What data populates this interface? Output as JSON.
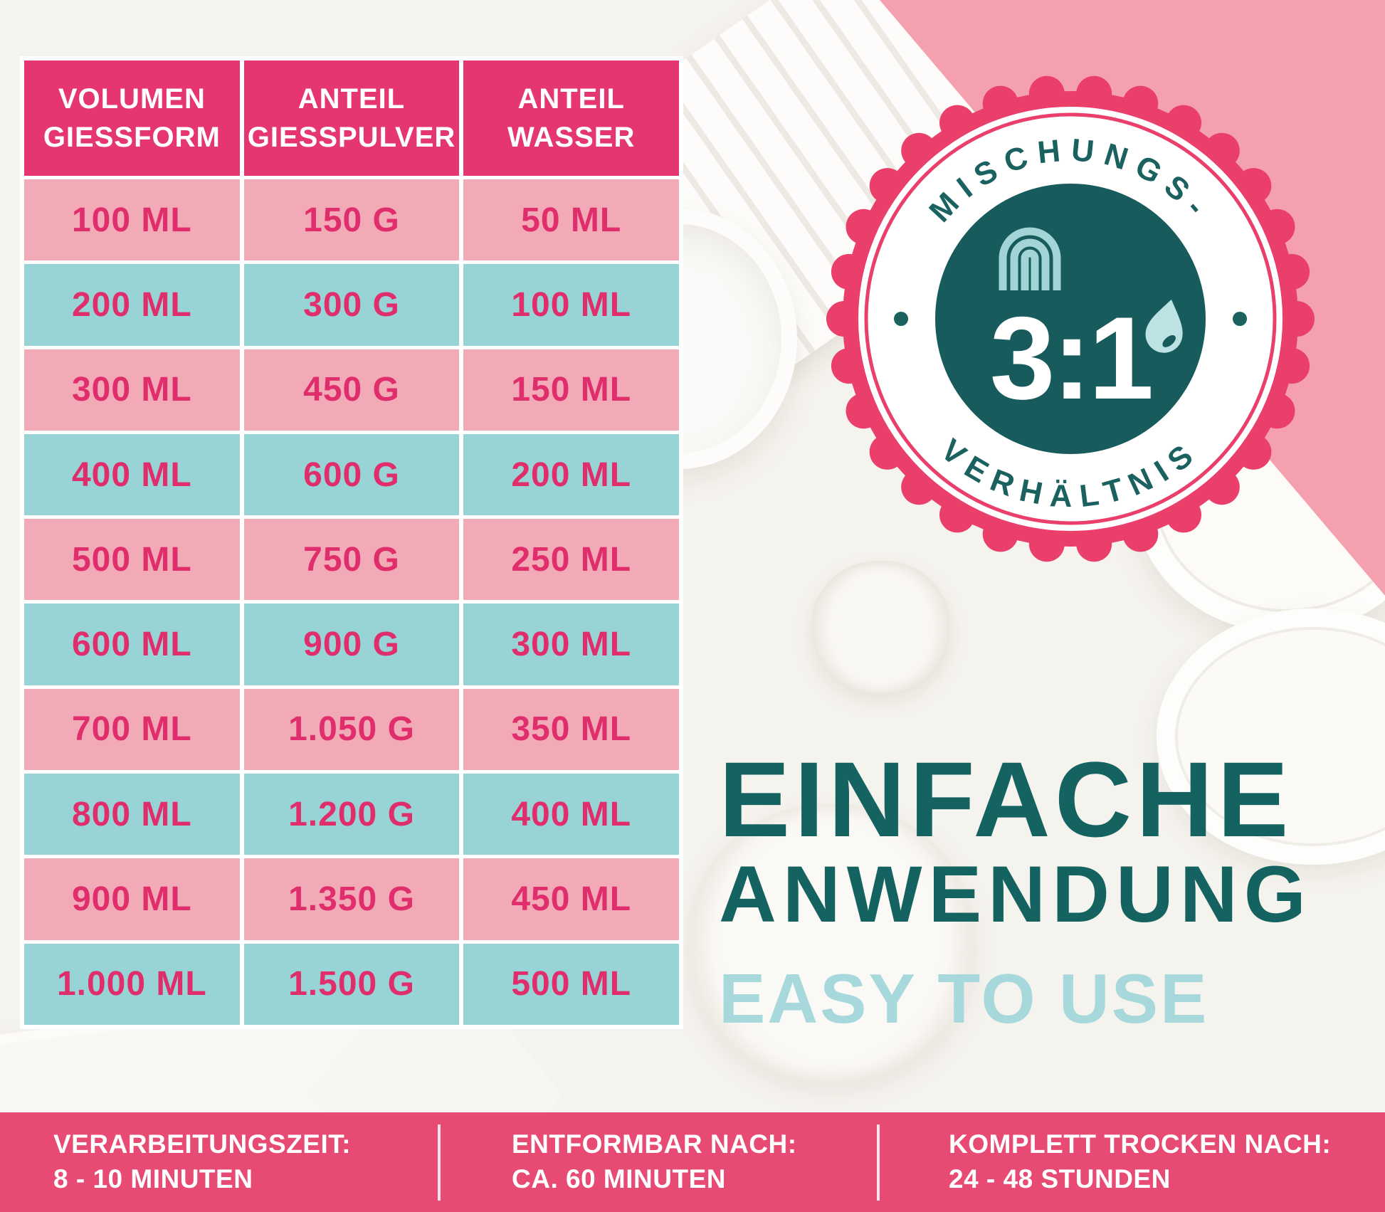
{
  "colors": {
    "header_pink": "#E5366F",
    "row_pink": "#F3AAB7",
    "row_teal": "#98D3D6",
    "value_text_pink": "#E02E6D",
    "badge_pink": "#EA3E6B",
    "badge_inner_teal": "#175B5C",
    "dark_teal_text": "#156361",
    "light_teal_text": "#A7D8DB",
    "corner_pink": "#F5A0AF",
    "footer_pink": "#E74A72"
  },
  "table": {
    "columns": [
      {
        "line1": "VOLUMEN",
        "line2": "GIESSFORM"
      },
      {
        "line1": "ANTEIL",
        "line2": "GIESSPULVER"
      },
      {
        "line1": "ANTEIL",
        "line2": "WASSER"
      }
    ],
    "rows": [
      [
        "100 ML",
        "150 G",
        "50 ML"
      ],
      [
        "200 ML",
        "300 G",
        "100 ML"
      ],
      [
        "300 ML",
        "450 G",
        "150 ML"
      ],
      [
        "400 ML",
        "600 G",
        "200 ML"
      ],
      [
        "500 ML",
        "750 G",
        "250 ML"
      ],
      [
        "600 ML",
        "900 G",
        "300 ML"
      ],
      [
        "700 ML",
        "1.050 G",
        "350 ML"
      ],
      [
        "800 ML",
        "1.200 G",
        "400 ML"
      ],
      [
        "900 ML",
        "1.350 G",
        "450 ML"
      ],
      [
        "1.000 ML",
        "1.500 G",
        "500 ML"
      ]
    ]
  },
  "badge": {
    "arc_top": "MISCHUNGS-",
    "arc_bottom": "VERHÄLTNIS",
    "ratio": "3:1"
  },
  "headline": {
    "line1": "EINFACHE",
    "line2": "ANWENDUNG",
    "line3": "EASY TO USE"
  },
  "footer": {
    "items": [
      {
        "label": "VERARBEITUNGSZEIT:",
        "value": "8 - 10 MINUTEN"
      },
      {
        "label": "ENTFORMBAR NACH:",
        "value": "CA. 60 MINUTEN"
      },
      {
        "label": "KOMPLETT TROCKEN NACH:",
        "value": "24 - 48 STUNDEN"
      }
    ]
  }
}
